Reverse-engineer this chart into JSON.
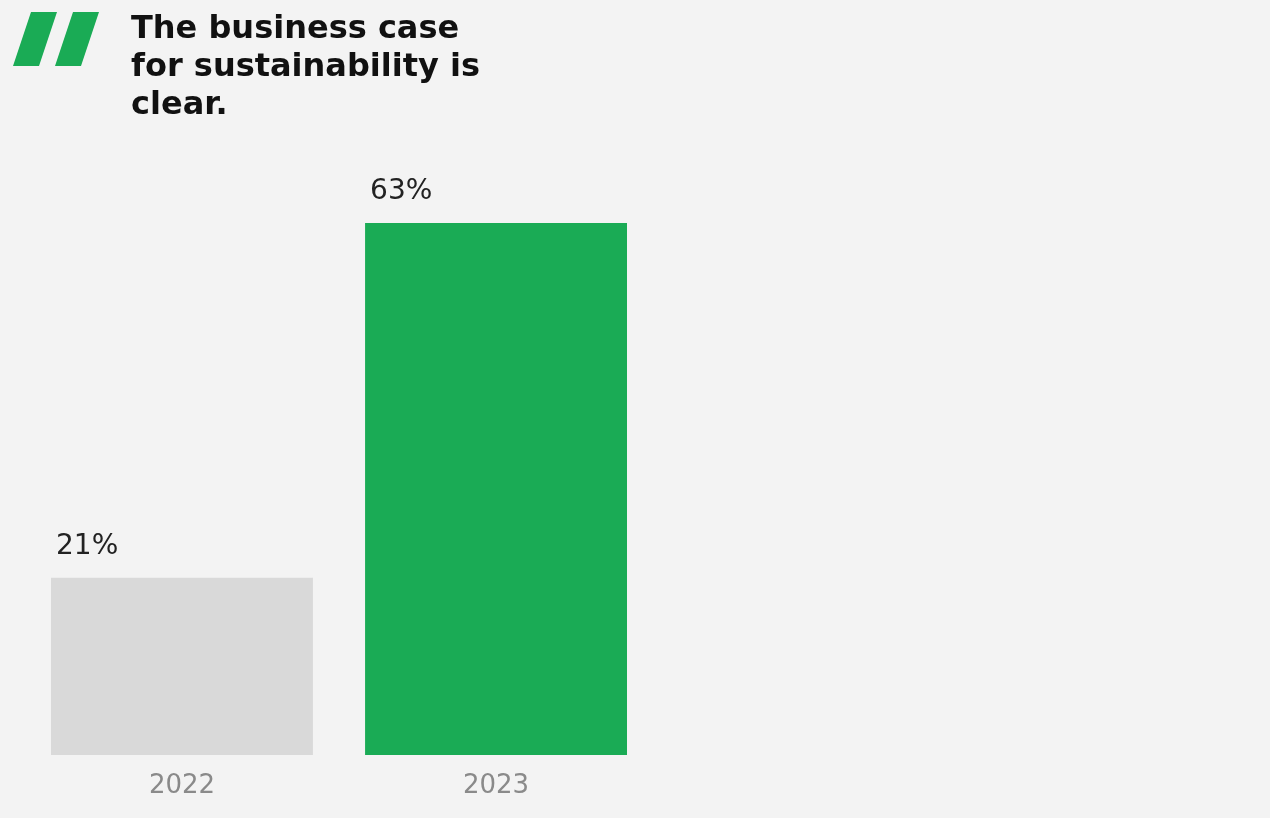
{
  "chart_data": [
    {
      "type": "bar",
      "title": "The business case\nfor sustainability is\nclear.",
      "categories": [
        "2022",
        "2023"
      ],
      "values": [
        21,
        63
      ],
      "colors": [
        "#d9d9d9",
        "#1aab55"
      ],
      "value_labels": [
        "21%",
        "63%"
      ],
      "tick_labels": "x"
    }
  ]
}
